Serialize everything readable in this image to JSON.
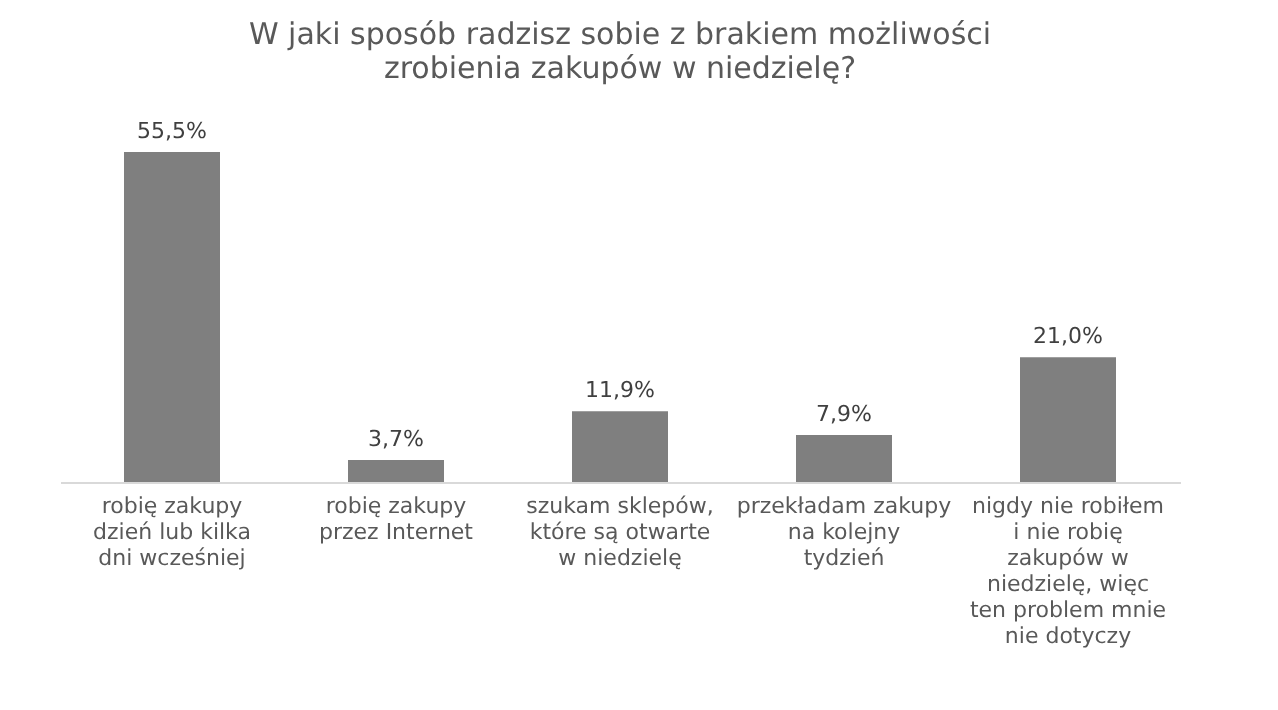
{
  "chart_data": {
    "type": "bar",
    "title": "W jaki sposób radzisz sobie z brakiem możliwości zrobienia zakupów w niedzielę?",
    "categories": [
      "robię zakupy dzień lub kilka dni wcześniej",
      "robię zakupy przez Internet",
      "szukam sklepów, które są otwarte w niedzielę",
      "przekładam zakupy na kolejny tydzień",
      "nigdy nie robiłem i nie robię zakupów w niedzielę, więc ten problem mnie nie dotyczy"
    ],
    "values": [
      55.5,
      3.7,
      11.9,
      7.9,
      21.0
    ],
    "value_labels": [
      "55,5%",
      "3,7%",
      "11,9%",
      "7,9%",
      "21,0%"
    ],
    "color": "#7f7f7f",
    "grid": false
  }
}
